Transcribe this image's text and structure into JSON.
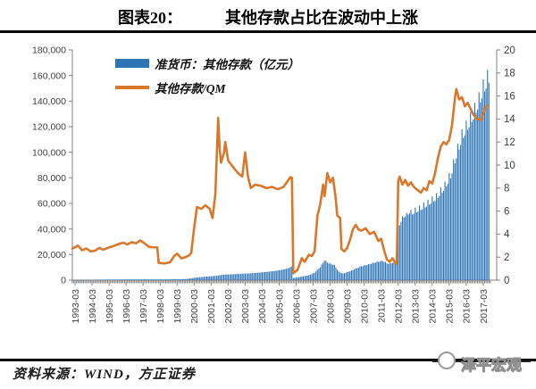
{
  "title": {
    "label": "图表20：",
    "text": "其他存款占比在波动中上涨"
  },
  "legend": {
    "items": [
      {
        "label": "准货币：其他存款（亿元）",
        "type": "bar",
        "color": "#2E75B6"
      },
      {
        "label": "其他存款/QM",
        "type": "line",
        "color": "#D9772A"
      }
    ]
  },
  "footer": {
    "source": "资料来源：WIND，方正证券",
    "logo_text": "泽平宏观"
  },
  "colors": {
    "bar": "#2E75B6",
    "line": "#D9772A",
    "axis": "#808080",
    "tick_text": "#404040"
  },
  "chart_data": {
    "type": "combo",
    "title": "其他存款占比在波动中上涨",
    "x_tick_labels": [
      "1993-03",
      "1994-03",
      "1995-03",
      "1996-03",
      "1997-03",
      "1998-03",
      "1999-03",
      "2000-03",
      "2001-03",
      "2002-03",
      "2003-03",
      "2004-03",
      "2005-03",
      "2006-03",
      "2007-03",
      "2008-03",
      "2009-03",
      "2010-03",
      "2011-03",
      "2012-03",
      "2013-03",
      "2014-03",
      "2015-03",
      "2016-03",
      "2017-03"
    ],
    "left_axis": {
      "min": 0,
      "max": 180000,
      "step": 20000,
      "tick_labels": [
        "0",
        "20,000",
        "40,000",
        "60,000",
        "80,000",
        "100,000",
        "120,000",
        "140,000",
        "160,000",
        "180,000"
      ]
    },
    "right_axis": {
      "min": 0,
      "max": 20,
      "step": 2,
      "tick_labels": [
        "0",
        "2",
        "4",
        "6",
        "8",
        "10",
        "12",
        "14",
        "16",
        "18",
        "20"
      ]
    },
    "grid": false,
    "legend_position": "top-left-inside",
    "series": [
      {
        "name": "准货币：其他存款（亿元）",
        "type": "bar",
        "axis": "left",
        "color": "#2E75B6",
        "range": [
          "1993-03",
          "2017-07"
        ],
        "anchors": [
          [
            "1993-03",
            250
          ],
          [
            "1994-03",
            350
          ],
          [
            "1995-03",
            450
          ],
          [
            "1996-03",
            550
          ],
          [
            "1997-03",
            620
          ],
          [
            "1998-03",
            560
          ],
          [
            "1999-03",
            680
          ],
          [
            "1999-10",
            950
          ],
          [
            "2000-01",
            1500
          ],
          [
            "2000-06",
            2200
          ],
          [
            "2000-12",
            2800
          ],
          [
            "2001-06",
            3300
          ],
          [
            "2001-12",
            4300
          ],
          [
            "2002-06",
            4600
          ],
          [
            "2002-12",
            5000
          ],
          [
            "2003-06",
            5300
          ],
          [
            "2003-12",
            5800
          ],
          [
            "2004-06",
            6400
          ],
          [
            "2004-12",
            7200
          ],
          [
            "2005-06",
            8300
          ],
          [
            "2005-10",
            9600
          ],
          [
            "2005-12",
            10800
          ],
          [
            "2006-01",
            1600
          ],
          [
            "2006-06",
            2600
          ],
          [
            "2006-12",
            3900
          ],
          [
            "2007-04",
            6000
          ],
          [
            "2007-08",
            10500
          ],
          [
            "2007-11",
            16000
          ],
          [
            "2008-02",
            13500
          ],
          [
            "2008-06",
            12000
          ],
          [
            "2008-09",
            6800
          ],
          [
            "2008-12",
            5200
          ],
          [
            "2009-06",
            7600
          ],
          [
            "2009-12",
            10800
          ],
          [
            "2010-06",
            12600
          ],
          [
            "2010-12",
            14600
          ],
          [
            "2011-04",
            15500
          ],
          [
            "2011-08",
            13000
          ],
          [
            "2012-02",
            15000
          ],
          [
            "2012-03",
            42000
          ],
          [
            "2012-06",
            50000
          ],
          [
            "2012-12",
            55000
          ],
          [
            "2013-06",
            58500
          ],
          [
            "2013-12",
            63000
          ],
          [
            "2014-06",
            68000
          ],
          [
            "2014-12",
            77000
          ],
          [
            "2015-04",
            86000
          ],
          [
            "2015-08",
            103000
          ],
          [
            "2015-12",
            118000
          ],
          [
            "2016-04",
            127000
          ],
          [
            "2016-08",
            136000
          ],
          [
            "2016-12",
            147000
          ],
          [
            "2017-03",
            157000
          ],
          [
            "2017-07",
            167000
          ]
        ],
        "monthly_spike_texture": {
          "period": 3,
          "segments": [
            {
              "from": "2007-01",
              "amp": 0.025
            },
            {
              "from": "2013-01",
              "amp": 0.05
            }
          ]
        }
      },
      {
        "name": "其他存款/QM",
        "type": "line",
        "axis": "right",
        "color": "#D9772A",
        "range": [
          "1993-01",
          "2017-06"
        ],
        "anchors": [
          [
            "1993-01",
            2.75
          ],
          [
            "1993-03",
            2.85
          ],
          [
            "1993-05",
            3.0
          ],
          [
            "1993-08",
            2.6
          ],
          [
            "1993-11",
            2.75
          ],
          [
            "1994-02",
            2.5
          ],
          [
            "1994-05",
            2.55
          ],
          [
            "1994-08",
            2.8
          ],
          [
            "1994-11",
            2.65
          ],
          [
            "1995-02",
            2.8
          ],
          [
            "1995-06",
            2.95
          ],
          [
            "1995-10",
            3.15
          ],
          [
            "1996-01",
            3.25
          ],
          [
            "1996-04",
            3.1
          ],
          [
            "1996-07",
            3.3
          ],
          [
            "1996-10",
            3.2
          ],
          [
            "1997-01",
            3.45
          ],
          [
            "1997-04",
            3.2
          ],
          [
            "1997-07",
            2.9
          ],
          [
            "1997-10",
            2.85
          ],
          [
            "1998-01",
            2.85
          ],
          [
            "1998-02",
            1.5
          ],
          [
            "1998-06",
            1.45
          ],
          [
            "1998-10",
            1.55
          ],
          [
            "1999-01",
            2.1
          ],
          [
            "1999-03",
            2.3
          ],
          [
            "1999-06",
            1.9
          ],
          [
            "1999-09",
            2.0
          ],
          [
            "1999-12",
            2.2
          ],
          [
            "2000-01",
            2.4
          ],
          [
            "2000-03",
            4.5
          ],
          [
            "2000-05",
            6.35
          ],
          [
            "2000-08",
            6.2
          ],
          [
            "2000-11",
            6.5
          ],
          [
            "2001-02",
            6.2
          ],
          [
            "2001-04",
            5.4
          ],
          [
            "2001-06",
            7.5
          ],
          [
            "2001-08",
            14.1
          ],
          [
            "2001-09",
            11.5
          ],
          [
            "2001-10",
            10.2
          ],
          [
            "2001-12",
            11.0
          ],
          [
            "2002-01",
            12.0
          ],
          [
            "2002-03",
            10.4
          ],
          [
            "2002-06",
            9.9
          ],
          [
            "2002-10",
            9.3
          ],
          [
            "2003-01",
            9.0
          ],
          [
            "2003-03",
            11.1
          ],
          [
            "2003-05",
            9.0
          ],
          [
            "2003-07",
            8.0
          ],
          [
            "2003-10",
            8.3
          ],
          [
            "2004-02",
            8.2
          ],
          [
            "2004-06",
            8.0
          ],
          [
            "2004-10",
            8.1
          ],
          [
            "2005-02",
            7.9
          ],
          [
            "2005-06",
            8.1
          ],
          [
            "2005-09",
            8.6
          ],
          [
            "2005-11",
            8.95
          ],
          [
            "2005-12",
            8.9
          ],
          [
            "2006-01",
            0.6
          ],
          [
            "2006-04",
            0.9
          ],
          [
            "2006-07",
            1.9
          ],
          [
            "2006-09",
            1.6
          ],
          [
            "2006-12",
            2.2
          ],
          [
            "2007-02",
            2.1
          ],
          [
            "2007-04",
            2.5
          ],
          [
            "2007-06",
            5.6
          ],
          [
            "2007-08",
            6.6
          ],
          [
            "2007-10",
            8.3
          ],
          [
            "2007-11",
            7.3
          ],
          [
            "2008-01",
            9.3
          ],
          [
            "2008-03",
            8.5
          ],
          [
            "2008-05",
            8.9
          ],
          [
            "2008-07",
            7.0
          ],
          [
            "2008-08",
            5.6
          ],
          [
            "2008-10",
            5.4
          ],
          [
            "2008-11",
            2.7
          ],
          [
            "2009-01",
            2.5
          ],
          [
            "2009-03",
            2.8
          ],
          [
            "2009-05",
            3.5
          ],
          [
            "2009-07",
            4.4
          ],
          [
            "2009-09",
            4.8
          ],
          [
            "2009-11",
            4.4
          ],
          [
            "2010-01",
            4.3
          ],
          [
            "2010-04",
            4.5
          ],
          [
            "2010-07",
            4.0
          ],
          [
            "2010-10",
            4.2
          ],
          [
            "2011-01",
            3.4
          ],
          [
            "2011-03",
            3.6
          ],
          [
            "2011-05",
            2.6
          ],
          [
            "2011-07",
            1.8
          ],
          [
            "2011-09",
            1.6
          ],
          [
            "2011-11",
            1.9
          ],
          [
            "2012-01",
            1.5
          ],
          [
            "2012-02",
            1.4
          ],
          [
            "2012-03",
            8.6
          ],
          [
            "2012-04",
            9.0
          ],
          [
            "2012-06",
            8.3
          ],
          [
            "2012-08",
            8.7
          ],
          [
            "2012-10",
            8.2
          ],
          [
            "2012-12",
            8.5
          ],
          [
            "2013-02",
            8.1
          ],
          [
            "2013-05",
            7.8
          ],
          [
            "2013-07",
            7.6
          ],
          [
            "2013-09",
            8.0
          ],
          [
            "2013-11",
            7.8
          ],
          [
            "2014-01",
            8.6
          ],
          [
            "2014-03",
            8.4
          ],
          [
            "2014-05",
            9.3
          ],
          [
            "2014-07",
            10.6
          ],
          [
            "2014-09",
            11.6
          ],
          [
            "2014-11",
            12.0
          ],
          [
            "2015-01",
            11.8
          ],
          [
            "2015-03",
            12.2
          ],
          [
            "2015-05",
            13.5
          ],
          [
            "2015-07",
            15.8
          ],
          [
            "2015-08",
            16.6
          ],
          [
            "2015-10",
            15.7
          ],
          [
            "2015-12",
            15.9
          ],
          [
            "2016-02",
            15.1
          ],
          [
            "2016-04",
            15.4
          ],
          [
            "2016-06",
            14.9
          ],
          [
            "2016-08",
            14.4
          ],
          [
            "2016-10",
            14.1
          ],
          [
            "2016-12",
            13.9
          ],
          [
            "2017-02",
            14.0
          ],
          [
            "2017-04",
            14.9
          ],
          [
            "2017-06",
            15.2
          ]
        ]
      }
    ]
  }
}
